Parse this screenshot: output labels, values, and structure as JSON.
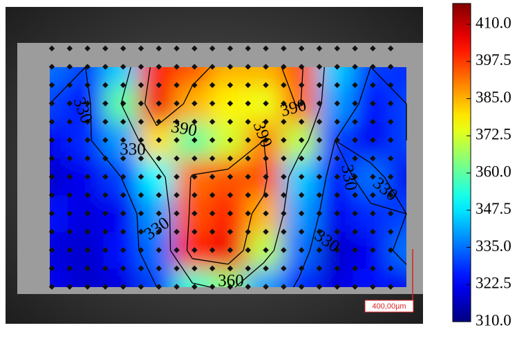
{
  "chart_data": {
    "type": "contour",
    "clim": [
      310,
      417
    ],
    "cticks": [
      {
        "value": 310,
        "label": "310.0"
      },
      {
        "value": 322.5,
        "label": "322.5"
      },
      {
        "value": 335,
        "label": "335.0"
      },
      {
        "value": 347.5,
        "label": "347.5"
      },
      {
        "value": 360,
        "label": "360.0"
      },
      {
        "value": 372.5,
        "label": "372.5"
      },
      {
        "value": 385,
        "label": "385.0"
      },
      {
        "value": 397.5,
        "label": "397.5"
      },
      {
        "value": 410,
        "label": "410.0"
      }
    ],
    "colormap": "jet",
    "grid_values": [
      [
        335,
        330,
        345,
        400,
        395,
        385,
        385,
        395,
        345,
        330,
        328
      ],
      [
        330,
        325,
        360,
        405,
        385,
        378,
        375,
        392,
        340,
        325,
        330
      ],
      [
        322,
        328,
        340,
        380,
        360,
        372,
        390,
        370,
        330,
        322,
        330
      ],
      [
        318,
        322,
        330,
        350,
        392,
        395,
        395,
        345,
        325,
        335,
        322
      ],
      [
        325,
        320,
        322,
        340,
        395,
        400,
        385,
        340,
        322,
        328,
        330
      ],
      [
        320,
        318,
        325,
        335,
        400,
        405,
        370,
        335,
        318,
        322,
        335
      ],
      [
        322,
        318,
        320,
        330,
        355,
        365,
        340,
        328,
        320,
        325,
        322
      ]
    ],
    "levels": [
      330,
      360,
      390
    ],
    "contour_labels": [
      330,
      330,
      330,
      330,
      330,
      330,
      390,
      390,
      390,
      360
    ],
    "scale_bar": "400,00µm"
  }
}
